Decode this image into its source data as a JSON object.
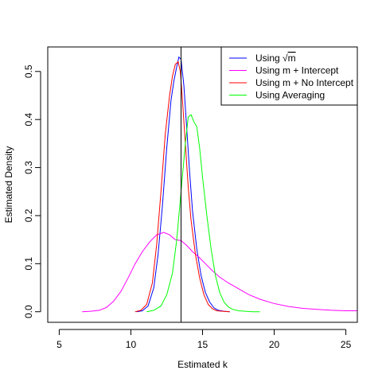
{
  "chart_data": {
    "type": "line",
    "title": "",
    "xlabel": "Estimated k",
    "ylabel": "Estimated Density",
    "xlim": [
      4.2,
      25.8
    ],
    "ylim": [
      -0.022,
      0.551
    ],
    "x_ticks": [
      5,
      10,
      15,
      20,
      25
    ],
    "y_ticks": [
      0.0,
      0.1,
      0.2,
      0.3,
      0.4,
      0.5
    ],
    "x_tick_labels": [
      "5",
      "10",
      "15",
      "20",
      "25"
    ],
    "y_tick_labels": [
      "0.0",
      "0.1",
      "0.2",
      "0.3",
      "0.4",
      "0.5"
    ],
    "grid": false,
    "legend_position": "top-right",
    "vertical_line": 13.5,
    "series": [
      {
        "name": "Using √m",
        "legend_prefix": "Using ",
        "legend_sqrt": "m",
        "color": "#0000ff",
        "x": [
          10.4,
          10.8,
          11.2,
          11.6,
          11.9,
          12.2,
          12.5,
          12.8,
          13.0,
          13.2,
          13.35,
          13.5,
          13.7,
          13.9,
          14.1,
          14.3,
          14.6,
          14.9,
          15.2,
          15.5,
          15.8,
          16.1,
          16.5,
          16.9
        ],
        "y": [
          0.0,
          0.002,
          0.012,
          0.05,
          0.12,
          0.22,
          0.34,
          0.44,
          0.48,
          0.51,
          0.53,
          0.525,
          0.47,
          0.38,
          0.29,
          0.21,
          0.13,
          0.075,
          0.04,
          0.02,
          0.008,
          0.003,
          0.001,
          0.0
        ]
      },
      {
        "name": "Using m + Intercept",
        "color": "#ff00ff",
        "x": [
          6.6,
          7.2,
          7.8,
          8.3,
          8.8,
          9.3,
          9.8,
          10.3,
          10.8,
          11.3,
          11.8,
          12.3,
          12.7,
          13.1,
          13.5,
          13.9,
          14.3,
          14.7,
          15.2,
          15.7,
          16.2,
          16.8,
          17.5,
          18.2,
          19.0,
          20.0,
          21.0,
          22.0,
          23.0,
          24.0,
          25.0,
          25.8
        ],
        "y": [
          0.0,
          0.001,
          0.003,
          0.009,
          0.022,
          0.042,
          0.07,
          0.1,
          0.125,
          0.145,
          0.16,
          0.165,
          0.16,
          0.15,
          0.148,
          0.138,
          0.125,
          0.115,
          0.1,
          0.085,
          0.072,
          0.06,
          0.048,
          0.036,
          0.026,
          0.017,
          0.011,
          0.007,
          0.005,
          0.003,
          0.002,
          0.002
        ]
      },
      {
        "name": "Using m + No Intercept",
        "color": "#ff0000",
        "x": [
          10.3,
          10.7,
          11.1,
          11.5,
          11.8,
          12.1,
          12.4,
          12.7,
          12.9,
          13.1,
          13.3,
          13.45,
          13.6,
          13.8,
          14.0,
          14.2,
          14.5,
          14.8,
          15.1,
          15.4,
          15.7,
          16.0,
          16.4,
          16.9
        ],
        "y": [
          0.0,
          0.003,
          0.015,
          0.06,
          0.14,
          0.25,
          0.37,
          0.45,
          0.49,
          0.515,
          0.52,
          0.5,
          0.44,
          0.35,
          0.26,
          0.19,
          0.12,
          0.07,
          0.035,
          0.015,
          0.006,
          0.002,
          0.001,
          0.0
        ]
      },
      {
        "name": "Using Averaging",
        "color": "#00ff00",
        "x": [
          11.1,
          11.6,
          12.1,
          12.5,
          12.9,
          13.2,
          13.5,
          13.8,
          14.0,
          14.2,
          14.4,
          14.6,
          14.8,
          15.0,
          15.3,
          15.6,
          15.9,
          16.2,
          16.5,
          16.8,
          17.1,
          17.5,
          18.0,
          18.5,
          19.0
        ],
        "y": [
          0.0,
          0.003,
          0.012,
          0.035,
          0.08,
          0.15,
          0.25,
          0.35,
          0.405,
          0.41,
          0.395,
          0.385,
          0.34,
          0.28,
          0.2,
          0.13,
          0.075,
          0.04,
          0.02,
          0.01,
          0.005,
          0.002,
          0.001,
          0.0,
          0.0
        ]
      }
    ]
  }
}
